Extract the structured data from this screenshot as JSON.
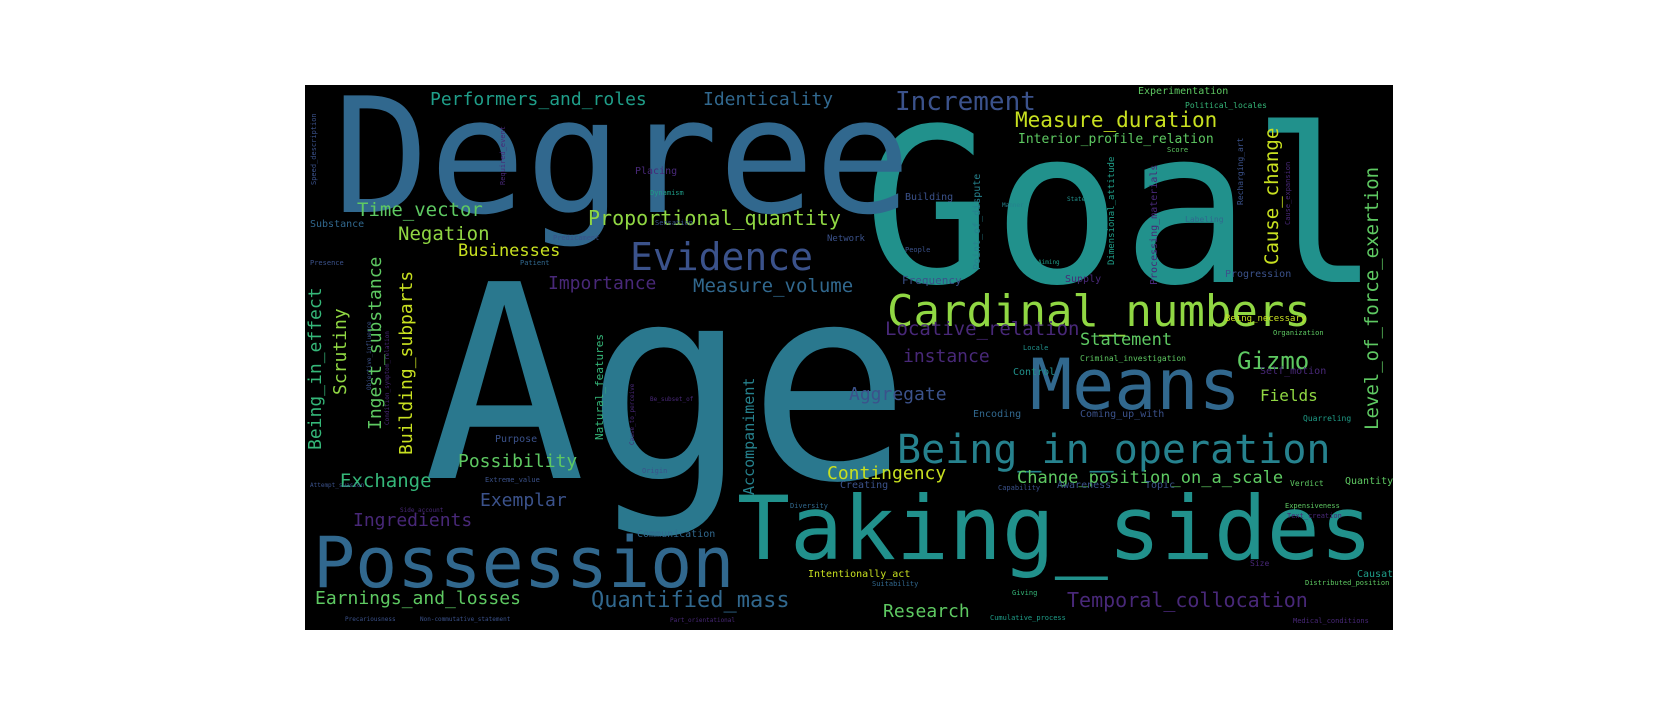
{
  "words": {
    "age": "Age",
    "goal": "Goal",
    "degree": "Degree",
    "taking_sides": "Taking_sides",
    "possession": "Possession",
    "means": "Means",
    "cardinal_numbers": "Cardinal_numbers",
    "being_in_operation": "Being_in_operation",
    "evidence": "Evidence",
    "increment": "Increment",
    "performers_and_roles": "Performers_and_roles",
    "identicality": "Identicality",
    "measure_duration": "Measure_duration",
    "proportional_quantity": "Proportional_quantity",
    "time_vector": "Time_vector",
    "negation": "Negation",
    "businesses": "Businesses",
    "importance": "Importance",
    "measure_volume": "Measure_volume",
    "locative_relation": "Locative_relation",
    "statement": "Statement",
    "gizmo": "Gizmo",
    "instance": "instance",
    "aggregate": "Aggregate",
    "fields": "Fields",
    "possibility": "Possibility",
    "contingency": "Contingency",
    "change_position": "Change_position_on_a_scale",
    "exchange": "Exchange",
    "exemplar": "Exemplar",
    "ingredients": "Ingredients",
    "earnings_and_losses": "Earnings_and_losses",
    "quantified_mass": "Quantified_mass",
    "research": "Research",
    "temporal_collocation": "Temporal_collocation",
    "cause_change": "Cause_change",
    "level_of_force_exertion": "Level_of_force_exertion",
    "being_in_effect": "Being_in_effect",
    "scrutiny": "Scrutiny",
    "ingest_substance": "Ingest_substance",
    "building_subparts": "Building_subparts",
    "accompaniment": "Accompaniment",
    "interior_profile_relation": "Interior_profile_relation",
    "experimentation": "Experimentation",
    "political_locales": "Political_locales",
    "point_of_dispute": "Point_of_dispute",
    "frequency": "Frequency",
    "supply": "Supply",
    "progression": "Progression",
    "being_necessary": "Being_necessary",
    "organization": "Organization",
    "self_motion": "Self_motion",
    "criminal_investigation": "Criminal_investigation",
    "control": "Control",
    "coming_up_with": "Coming_up_with",
    "encoding": "Encoding",
    "natural_features": "Natural_features",
    "purpose": "Purpose",
    "creating": "Creating",
    "topic": "Topic",
    "awareness": "Awareness",
    "quantity": "Quantity",
    "communication": "Communication",
    "intentionally_act": "Intentionally_act",
    "causation": "Causation",
    "size": "Size",
    "distributed_position": "Distributed_position",
    "network": "Network",
    "people": "People",
    "labeling": "Labeling",
    "placing": "Placing",
    "building": "Building",
    "substance": "Substance",
    "presence": "Presence",
    "quarreling": "Quarreling",
    "origin": "Origin",
    "extreme_value": "Extreme_value",
    "diversity": "Diversity",
    "suitability": "Suitability",
    "giving": "Giving",
    "cumulative_process": "Cumulative_process",
    "medical_conditions": "Medical_conditions",
    "non_commutative_statement": "Non-commutative_statement",
    "precariousness": "Precariousness",
    "parts_orientational": "Part_orientational",
    "text_creation": "Text_creation",
    "expensiveness": "Expensiveness",
    "verdict": "Verdict",
    "capability": "Capability",
    "dynamism": "Dynamism",
    "sensation": "Sensation",
    "predicament": "Predicament",
    "patient": "Patient",
    "speed_description": "Speed_description",
    "required_event": "Required_event",
    "locale": "Locale",
    "aiming": "Aiming",
    "manner": "Manner",
    "attempt_suasion": "Attempt_suasion",
    "side_account": "Side_account",
    "objective_influence": "Objective_influence",
    "condition_symptom_relation": "Condition_symptom_relation",
    "be_subset_of": "Be_subset_of",
    "cause_to_perceive": "Cause_to_perceive",
    "processing_materials": "Processing_materials",
    "dimensional_attitude": "Dimensional_attitude",
    "recharging_art": "Recharging_art",
    "cause_expansion": "Cause_expansion",
    "score": "Score",
    "state": "State"
  },
  "colors": {
    "teal_dark": "#2a788e",
    "teal": "#21918c",
    "blue": "#3b528b",
    "blue_mid": "#31688e",
    "purple": "#482878",
    "purple_dark": "#440154",
    "green": "#35b779",
    "green_light": "#5ec962",
    "yellow_green": "#90d743",
    "yellow": "#c8e020",
    "sea": "#1f9e89",
    "sea_light": "#26828e",
    "background": "#000000"
  }
}
